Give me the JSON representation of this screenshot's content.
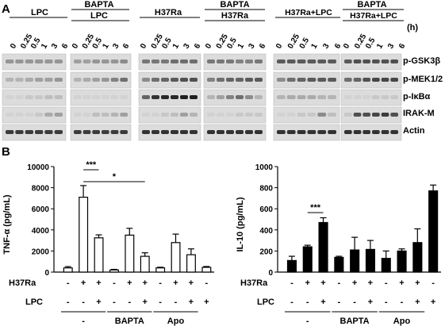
{
  "panel_a": {
    "label": "A",
    "groups": [
      {
        "title": "LPC",
        "bracket": ""
      },
      {
        "title": "LPC",
        "bracket": "BAPTA"
      },
      {
        "title": "H37Ra",
        "bracket": ""
      },
      {
        "title": "H37Ra",
        "bracket": "BAPTA"
      },
      {
        "title": "H37Ra+LPC",
        "bracket": ""
      },
      {
        "title": "H37Ra+LPC",
        "bracket": "BAPTA"
      }
    ],
    "timepoints": [
      "0",
      "0.25",
      "0.5",
      "1",
      "3",
      "6"
    ],
    "time_unit": "(h)",
    "rows": [
      "p-GSK3β",
      "p-MEK1/2",
      "p-IκBα",
      "IRAK-M",
      "Actin"
    ]
  },
  "panel_b": {
    "label": "B",
    "legend_rows": [
      "H37Ra",
      "LPC"
    ],
    "conditions": [
      {
        "h37ra": "-",
        "lpc": "-"
      },
      {
        "h37ra": "+",
        "lpc": "-"
      },
      {
        "h37ra": "+",
        "lpc": "+"
      },
      {
        "h37ra": "-",
        "lpc": "-"
      },
      {
        "h37ra": "+",
        "lpc": "-"
      },
      {
        "h37ra": "+",
        "lpc": "+"
      },
      {
        "h37ra": "-",
        "lpc": "-"
      },
      {
        "h37ra": "+",
        "lpc": "-"
      },
      {
        "h37ra": "+",
        "lpc": "+"
      },
      {
        "h37ra": "-",
        "lpc": "+"
      }
    ],
    "treatment_groups": [
      "-",
      "BAPTA",
      "Apo"
    ]
  },
  "chart_data": [
    {
      "type": "bar",
      "ylabel": "TNF-α (pg/mL)",
      "ylim": [
        0,
        10000
      ],
      "yticks": [
        "0",
        "2000",
        "4000",
        "6000",
        "8000",
        "10000"
      ],
      "fill": "#ffffff",
      "values": [
        400,
        7100,
        3250,
        200,
        3500,
        1500,
        400,
        2800,
        1650,
        450
      ],
      "errors": [
        120,
        1100,
        280,
        60,
        650,
        330,
        60,
        800,
        550,
        80
      ],
      "significance": [
        {
          "label": "***",
          "from": 1,
          "to": 2
        },
        {
          "label": "*",
          "from": 1,
          "to": 5
        }
      ]
    },
    {
      "type": "bar",
      "ylabel": "IL-10 (pg/mL)",
      "ylim": [
        0,
        1000
      ],
      "yticks": [
        "0",
        "200",
        "400",
        "600",
        "800",
        "1000"
      ],
      "fill": "#000000",
      "values": [
        110,
        240,
        470,
        140,
        210,
        215,
        130,
        200,
        280,
        770
      ],
      "errors": [
        40,
        15,
        45,
        10,
        120,
        85,
        70,
        20,
        130,
        55
      ],
      "significance": [
        {
          "label": "***",
          "from": 1,
          "to": 2
        }
      ]
    }
  ]
}
